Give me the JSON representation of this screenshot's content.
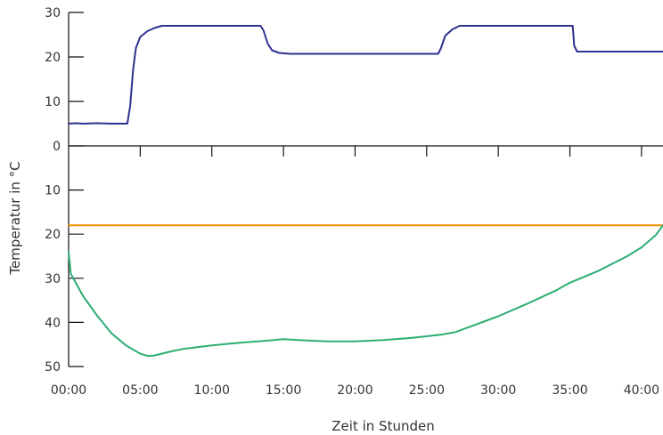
{
  "chart_data": {
    "type": "line",
    "title": "",
    "xlabel": "Zeit in Stunden",
    "ylabel": "Temperatur in °C",
    "xlim": [
      0,
      41.5
    ],
    "x_ticks": [
      0,
      5,
      10,
      15,
      20,
      25,
      30,
      35,
      40
    ],
    "x_tick_labels": [
      "00:00",
      "05:00",
      "10:00",
      "15:00",
      "20:00",
      "25:00",
      "30:00",
      "35:00",
      "40:00"
    ],
    "upper_axis": {
      "range": [
        0,
        30
      ],
      "ticks": [
        0,
        10,
        20,
        30
      ],
      "tick_labels": [
        "0",
        "10",
        "20",
        "30"
      ]
    },
    "lower_axis": {
      "range": [
        0,
        50
      ],
      "inverted": true,
      "ticks": [
        10,
        20,
        30,
        40,
        50
      ],
      "tick_labels": [
        "10",
        "20",
        "30",
        "40",
        "50"
      ]
    },
    "grid": false,
    "series": [
      {
        "color": "#2e3190",
        "axis": "upper",
        "points": [
          [
            0,
            5
          ],
          [
            0.5,
            5.1
          ],
          [
            1,
            5
          ],
          [
            2,
            5.1
          ],
          [
            3,
            5
          ],
          [
            4.1,
            5
          ],
          [
            4.3,
            9
          ],
          [
            4.5,
            17
          ],
          [
            4.7,
            22
          ],
          [
            5,
            24.5
          ],
          [
            5.5,
            25.8
          ],
          [
            6,
            26.5
          ],
          [
            6.5,
            27
          ],
          [
            13.4,
            27
          ],
          [
            13.6,
            26
          ],
          [
            13.9,
            23
          ],
          [
            14.2,
            21.5
          ],
          [
            14.7,
            20.9
          ],
          [
            15.5,
            20.7
          ],
          [
            25.8,
            20.7
          ],
          [
            26,
            22
          ],
          [
            26.3,
            24.8
          ],
          [
            26.8,
            26.2
          ],
          [
            27.3,
            27
          ],
          [
            35.2,
            27
          ],
          [
            35.3,
            22.5
          ],
          [
            35.5,
            21.2
          ],
          [
            41.5,
            21.2
          ]
        ]
      },
      {
        "color": "#f39200",
        "axis": "lower",
        "points": [
          [
            0,
            18
          ],
          [
            41.5,
            18
          ]
        ]
      },
      {
        "color": "#2cae72",
        "axis": "lower",
        "points": [
          [
            0,
            24
          ],
          [
            0.15,
            29
          ],
          [
            0.5,
            31
          ],
          [
            1,
            34
          ],
          [
            2,
            38.5
          ],
          [
            3,
            42.5
          ],
          [
            4,
            45.2
          ],
          [
            5,
            47.1
          ],
          [
            5.5,
            47.6
          ],
          [
            6,
            47.5
          ],
          [
            7,
            46.7
          ],
          [
            8,
            46
          ],
          [
            10,
            45.2
          ],
          [
            12,
            44.6
          ],
          [
            14,
            44.1
          ],
          [
            15,
            43.8
          ],
          [
            16,
            44
          ],
          [
            18,
            44.3
          ],
          [
            20,
            44.3
          ],
          [
            22,
            44
          ],
          [
            24,
            43.5
          ],
          [
            26,
            42.8
          ],
          [
            27,
            42.2
          ],
          [
            28,
            41
          ],
          [
            30,
            38.6
          ],
          [
            32,
            35.8
          ],
          [
            34,
            32.8
          ],
          [
            35,
            31
          ],
          [
            37,
            28.3
          ],
          [
            39,
            25
          ],
          [
            40,
            23
          ],
          [
            41,
            20.2
          ],
          [
            41.5,
            18
          ]
        ]
      }
    ]
  }
}
